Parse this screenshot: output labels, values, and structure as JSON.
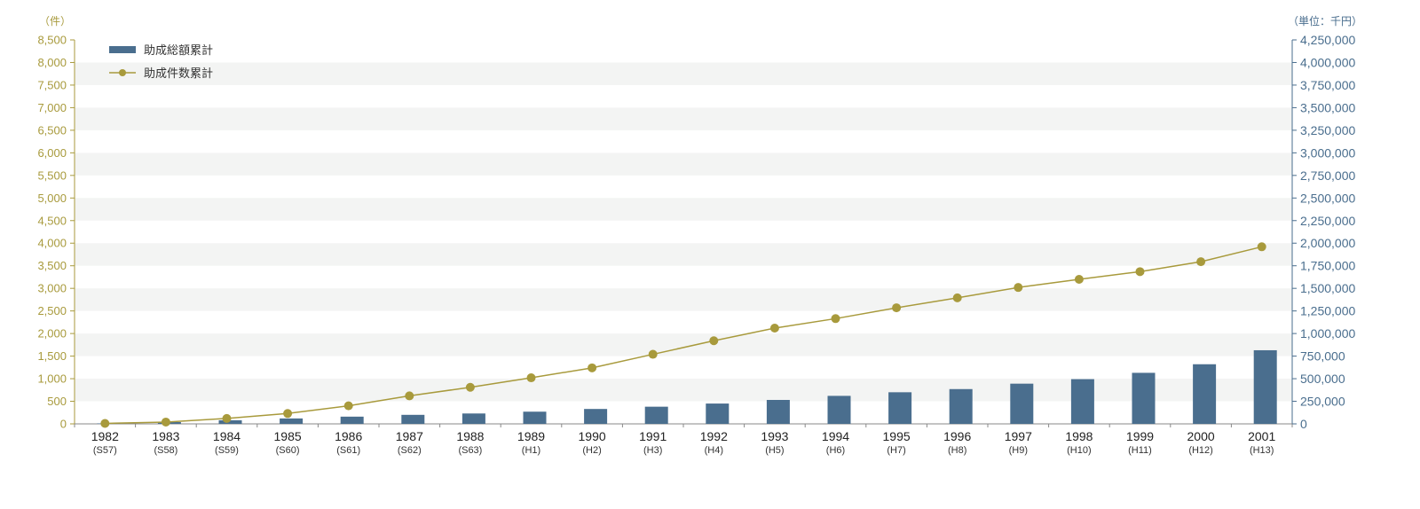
{
  "chart_data": {
    "type": "bar",
    "categories": [
      "1982",
      "1983",
      "1984",
      "1985",
      "1986",
      "1987",
      "1988",
      "1989",
      "1990",
      "1991",
      "1992",
      "1993",
      "1994",
      "1995",
      "1996",
      "1997",
      "1998",
      "1999",
      "2000",
      "2001"
    ],
    "era_labels": [
      "(S57)",
      "(S58)",
      "(S59)",
      "(S60)",
      "(S61)",
      "(S62)",
      "(S63)",
      "(H1)",
      "(H2)",
      "(H3)",
      "(H4)",
      "(H5)",
      "(H6)",
      "(H7)",
      "(H8)",
      "(H9)",
      "(H10)",
      "(H11)",
      "(H12)",
      "(H13)"
    ],
    "series": [
      {
        "name": "助成総額累計",
        "type": "bar",
        "axis": "right",
        "color": "#4a6e8e",
        "values": [
          5000,
          20000,
          40000,
          60000,
          80000,
          100000,
          115000,
          135000,
          165000,
          190000,
          225000,
          265000,
          310000,
          350000,
          385000,
          445000,
          495000,
          565000,
          660000,
          815000
        ]
      },
      {
        "name": "助成件数累計",
        "type": "line",
        "axis": "left",
        "color": "#a89a3c",
        "values": [
          10,
          40,
          120,
          230,
          400,
          620,
          810,
          1020,
          1240,
          1540,
          1840,
          2120,
          2330,
          2570,
          2790,
          3020,
          3200,
          3370,
          3590,
          3920
        ]
      }
    ],
    "left_axis": {
      "unit": "（件）",
      "ylim": [
        0,
        8500
      ],
      "ticks": [
        "0",
        "500",
        "1,000",
        "1,500",
        "2,000",
        "2,500",
        "3,000",
        "3,500",
        "4,000",
        "4,500",
        "5,000",
        "5,500",
        "6,000",
        "6,500",
        "7,000",
        "7,500",
        "8,000",
        "8,500"
      ]
    },
    "right_axis": {
      "unit": "（単位：千円）",
      "ylim": [
        0,
        4250000
      ],
      "ticks": [
        "0",
        "250,000",
        "500,000",
        "750,000",
        "1,000,000",
        "1,250,000",
        "1,500,000",
        "1,750,000",
        "2,000,000",
        "2,250,000",
        "2,500,000",
        "2,750,000",
        "3,000,000",
        "3,250,000",
        "3,500,000",
        "3,750,000",
        "4,000,000",
        "4,250,000"
      ]
    },
    "legend_position": "top-left",
    "grid": "alternating-bands"
  }
}
